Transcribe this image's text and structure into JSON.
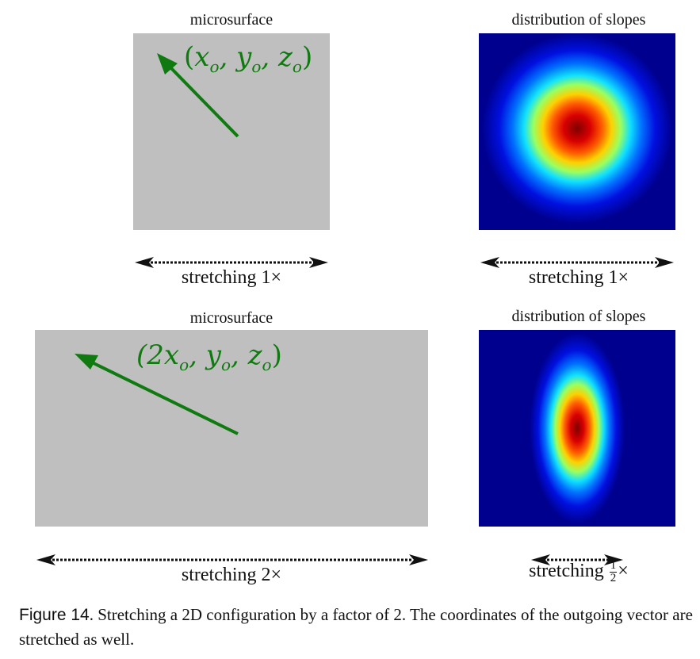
{
  "top_row": {
    "micro_label": "microsurface",
    "slopes_label": "distribution of slopes",
    "coord_open": "(",
    "coord_x": "x",
    "coord_rest": ", y",
    "coord_rest2": ", z",
    "coord_close": ")",
    "coord_sub": "o",
    "stretch_left": "stretching 1×",
    "stretch_right": "stretching 1×"
  },
  "bottom_row": {
    "micro_label": "microsurface",
    "slopes_label": "distribution of slopes",
    "coord_prefix": "(2x",
    "coord_rest": ", y",
    "coord_rest2": ", z",
    "coord_close": ")",
    "coord_sub": "o",
    "stretch_left": "stretching 2×",
    "stretch_right_prefix": "stretching",
    "stretch_right_num": "1",
    "stretch_right_den": "2",
    "stretch_right_suffix": "×"
  },
  "caption": {
    "figure_label": "Figure 14",
    "text": ". Stretching a 2D configuration by a factor of 2. The coordinates of the outgoing vector are stretched as well."
  },
  "colors": {
    "arrow_green": "#0f7a0f",
    "heat_background": "#00008f",
    "heat_center": "#7f0000"
  }
}
